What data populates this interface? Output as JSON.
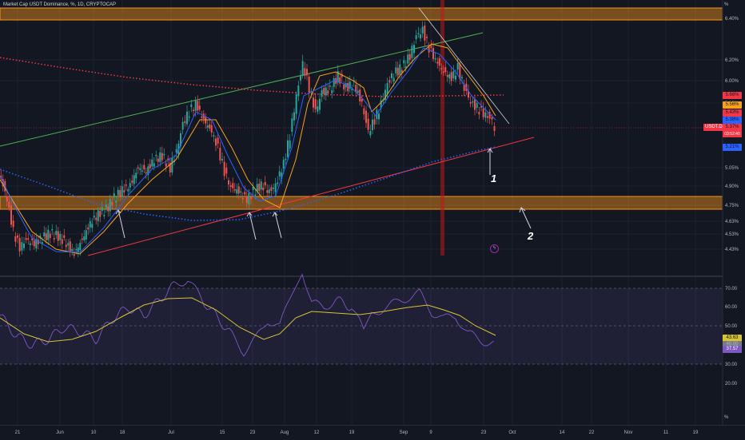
{
  "legend": "Market Cap USDT Dominance, %, 1D, CRYPTOCAP",
  "percent_symbol": "%",
  "percent_symbol_bottom": "%",
  "symbol_tag": "USDT.D",
  "countdown": "03:52:40",
  "annotations": {
    "one": "1",
    "two": "2"
  },
  "flash_glyph": "ϟ",
  "colors": {
    "background": "#131722",
    "up": "#26a69a",
    "down": "#ef5350",
    "zone": "#f7931a",
    "green_line": "#4caf50",
    "red_line": "#f23645",
    "ma_orange": "#f7a21b",
    "ma_blue": "#2962ff",
    "ema200": "#f23645",
    "ma_blue_dotted": "#2962ff",
    "rsi": "#7e57c2",
    "rsi_ma": "#d6c435",
    "vline": "#b71c1c"
  },
  "price_scale": [
    "6.40%",
    "6.20%",
    "6.00%",
    "5.80%",
    "5.05%",
    "4.90%",
    "4.75%",
    "4.63%",
    "4.53%",
    "4.43%"
  ],
  "rsi_scale": [
    "70.00",
    "60.00",
    "50.00",
    "40.00",
    "30.00",
    "20.00"
  ],
  "price_tags": [
    {
      "label": "5.66%",
      "color": "#f23645"
    },
    {
      "label": "5.56%",
      "color": "#f7a21b"
    },
    {
      "label": "5.43%",
      "color": "#f23645"
    },
    {
      "label": "5.38%",
      "color": "#2962ff"
    },
    {
      "label": "5.37%",
      "color": "#f23645"
    },
    {
      "label": "5.21%",
      "color": "#2962ff"
    }
  ],
  "rsi_tags": [
    {
      "label": "43.63",
      "color": "#d6c435"
    },
    {
      "label": "40.00",
      "color": "#787b86"
    },
    {
      "label": "37.57",
      "color": "#7e57c2"
    }
  ],
  "time_axis": [
    "21",
    "Jun",
    "10",
    "18",
    "Jul",
    "15",
    "23",
    "Aug",
    "12",
    "19",
    "Sep",
    "9",
    "23",
    "Oct",
    "14",
    "22",
    "Nov",
    "11",
    "19"
  ],
  "chart_data": {
    "type": "candlestick",
    "symbol": "Market Cap USDT Dominance, %, 1D, CRYPTOCAP",
    "price_levels": [
      6.4,
      6.2,
      6.0,
      5.8,
      5.05,
      4.9,
      4.75,
      4.63,
      4.53,
      4.43
    ],
    "last_price": 5.37,
    "indicator_values": {
      "ema_dotted_red": 5.66,
      "ma_orange": 5.56,
      "ma_red": 5.43,
      "ma_blue": 5.38,
      "ma_blue_dotted": 5.21
    },
    "rsi": {
      "value": 37.57,
      "ma": 43.63,
      "levels": [
        70,
        60,
        50,
        40,
        30,
        20
      ]
    },
    "resistance_zone": [
      6.36,
      6.44
    ],
    "support_zone": [
      4.68,
      4.76
    ]
  }
}
